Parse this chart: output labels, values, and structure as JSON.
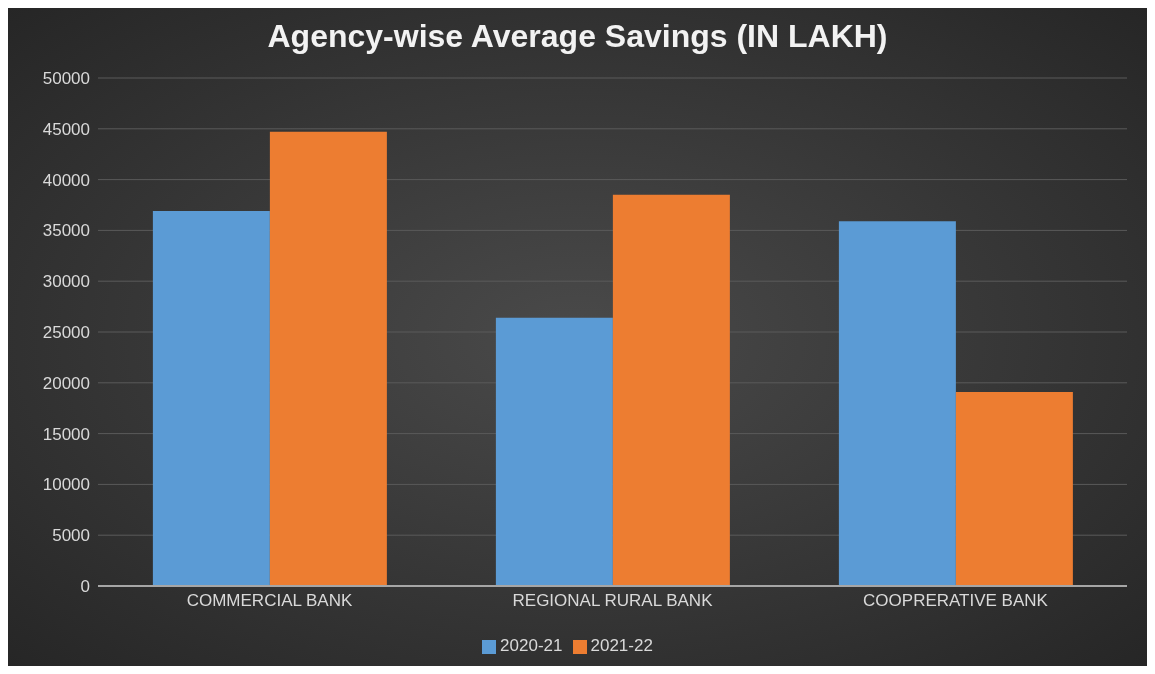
{
  "chart_data": {
    "type": "bar",
    "title": "Agency-wise Average Savings (IN LAKH)",
    "categories": [
      "COMMERCIAL BANK",
      "REGIONAL RURAL BANK",
      "COOPRERATIVE BANK"
    ],
    "series": [
      {
        "name": "2020-21",
        "color": "#5b9bd5",
        "values": [
          36900,
          26400,
          35900
        ]
      },
      {
        "name": "2021-22",
        "color": "#ed7d31",
        "values": [
          44700,
          38500,
          19100
        ]
      }
    ],
    "ylim": [
      0,
      50000
    ],
    "yticks": [
      0,
      5000,
      10000,
      15000,
      20000,
      25000,
      30000,
      35000,
      40000,
      45000,
      50000
    ],
    "grid": "y",
    "legend": "bottom"
  }
}
